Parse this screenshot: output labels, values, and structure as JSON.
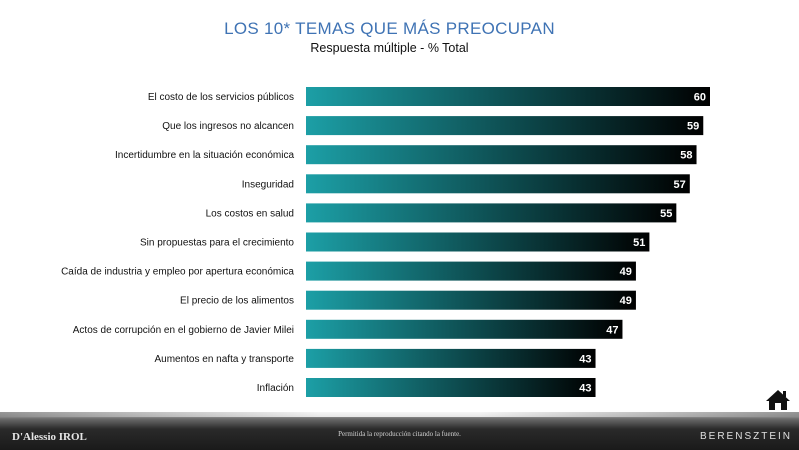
{
  "header": {
    "title": "LOS 10* TEMAS QUE MÁS PREOCUPAN",
    "subtitle": "Respuesta múltiple - % Total"
  },
  "footer": {
    "logo_left": "D'Alessio IROL",
    "note": "Permitida la reproducción citando la fuente.",
    "logo_right": "BERENSZTEIN"
  },
  "icons": {
    "home": "home-icon"
  },
  "colors": {
    "title": "#3f73b4",
    "bar_start": "#1c9fa6",
    "bar_end": "#000000"
  },
  "chart_data": {
    "type": "bar",
    "orientation": "horizontal",
    "categories": [
      "El costo de los servicios públicos",
      "Que los ingresos no alcancen",
      "Incertidumbre en la situación económica",
      "Inseguridad",
      "Los costos en salud",
      "Sin propuestas para el crecimiento",
      "Caída de industria y empleo por apertura económica",
      "El precio de los alimentos",
      "Actos de corrupción en el gobierno de Javier Milei",
      "Aumentos en nafta y transporte",
      "Inflación"
    ],
    "values": [
      60,
      59,
      58,
      57,
      55,
      51,
      49,
      49,
      47,
      43,
      43
    ],
    "title": "LOS 10* TEMAS QUE MÁS PREOCUPAN",
    "subtitle": "Respuesta múltiple - % Total",
    "xlabel": "",
    "ylabel": "",
    "xlim": [
      0,
      60
    ],
    "grid": false,
    "data_labels": true
  }
}
